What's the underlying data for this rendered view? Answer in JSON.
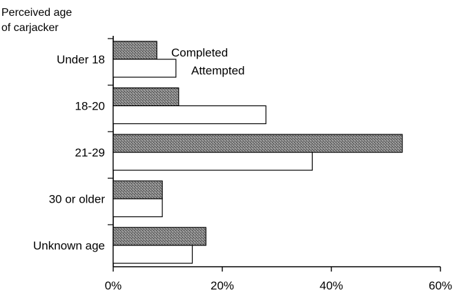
{
  "chart_data": {
    "type": "bar",
    "orientation": "horizontal",
    "title": "",
    "ylabel_lines": [
      "Perceived age",
      "of carjacker"
    ],
    "xlabel": "",
    "categories": [
      "Under 18",
      "18-20",
      "21-29",
      "30 or older",
      "Unknown age"
    ],
    "series": [
      {
        "name": "Completed",
        "values": [
          8,
          12,
          53,
          9,
          17
        ],
        "color": "#7a7a7a"
      },
      {
        "name": "Attempted",
        "values": [
          11.5,
          28,
          36.5,
          9,
          14.5
        ],
        "color": "#ffffff"
      }
    ],
    "xlim": [
      0,
      60
    ],
    "xticks": [
      0,
      20,
      40,
      60
    ],
    "xtick_labels": [
      "0%",
      "20%",
      "40%",
      "60%"
    ],
    "legend": "inline-top-right-of-first-group",
    "grid": false
  }
}
